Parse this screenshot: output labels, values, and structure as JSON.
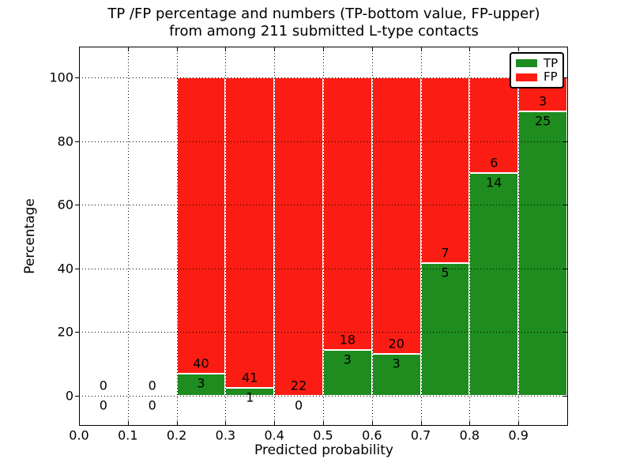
{
  "title": {
    "line1": "TP /FP percentage and numbers (TP-bottom value, FP-upper)",
    "line2": "from among 211 submitted L-type contacts"
  },
  "axes": {
    "xlabel": "Predicted probability",
    "ylabel": "Percentage",
    "x_tick_labels": [
      "0.0",
      "0.1",
      "0.2",
      "0.3",
      "0.4",
      "0.5",
      "0.6",
      "0.7",
      "0.8",
      "0.9"
    ],
    "y_tick_labels": [
      "0",
      "20",
      "40",
      "60",
      "80",
      "100"
    ]
  },
  "legend": {
    "items": [
      {
        "label": "TP",
        "color": "#1e8c1e"
      },
      {
        "label": "FP",
        "color": "#fb1d13"
      }
    ]
  },
  "colors": {
    "tp": "#1e8c1e",
    "fp": "#fb1d13",
    "grid": "#000000",
    "background": "#ffffff"
  },
  "chart_data": {
    "type": "bar",
    "stacked": true,
    "normalized_to_percent": true,
    "title": "TP /FP percentage and numbers (TP-bottom value, FP-upper) from among 211 submitted L-type contacts",
    "xlabel": "Predicted probability",
    "ylabel": "Percentage",
    "xlim": [
      0.0,
      1.0
    ],
    "ylim_percent": [
      0,
      100
    ],
    "bin_width": 0.1,
    "total_contacts": 211,
    "categories": [
      "0.0-0.1",
      "0.1-0.2",
      "0.2-0.3",
      "0.3-0.4",
      "0.4-0.5",
      "0.5-0.6",
      "0.6-0.7",
      "0.7-0.8",
      "0.8-0.9",
      "0.9-1.0"
    ],
    "series": [
      {
        "name": "TP",
        "values": [
          0,
          0,
          3,
          1,
          0,
          3,
          3,
          5,
          14,
          25
        ]
      },
      {
        "name": "FP",
        "values": [
          0,
          0,
          40,
          41,
          22,
          18,
          20,
          7,
          6,
          3
        ]
      }
    ],
    "bins": [
      {
        "x0": 0.0,
        "x1": 0.1,
        "tp": 0,
        "fp": 0
      },
      {
        "x0": 0.1,
        "x1": 0.2,
        "tp": 0,
        "fp": 0
      },
      {
        "x0": 0.2,
        "x1": 0.3,
        "tp": 3,
        "fp": 40
      },
      {
        "x0": 0.3,
        "x1": 0.4,
        "tp": 1,
        "fp": 41
      },
      {
        "x0": 0.4,
        "x1": 0.5,
        "tp": 0,
        "fp": 22
      },
      {
        "x0": 0.5,
        "x1": 0.6,
        "tp": 3,
        "fp": 18
      },
      {
        "x0": 0.6,
        "x1": 0.7,
        "tp": 3,
        "fp": 20
      },
      {
        "x0": 0.7,
        "x1": 0.8,
        "tp": 5,
        "fp": 7
      },
      {
        "x0": 0.8,
        "x1": 0.9,
        "tp": 14,
        "fp": 6
      },
      {
        "x0": 0.9,
        "x1": 1.0,
        "tp": 25,
        "fp": 3
      }
    ],
    "grid": true,
    "legend_position": "upper right"
  }
}
